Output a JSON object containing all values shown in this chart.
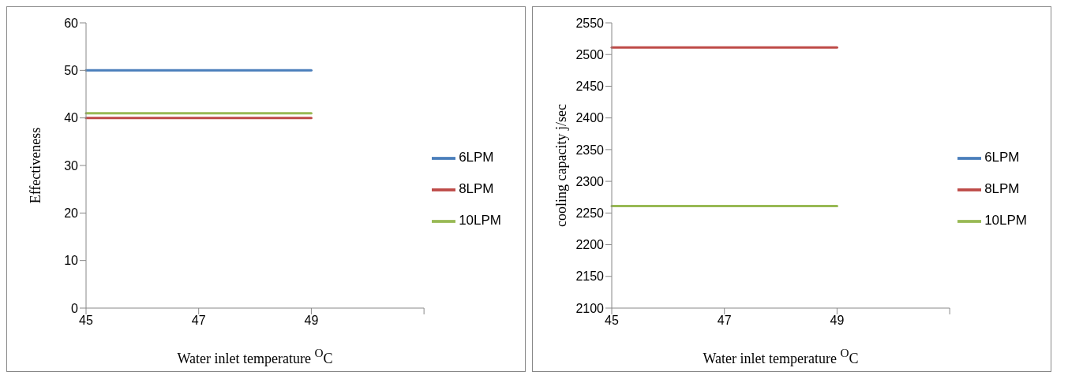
{
  "chart_data": [
    {
      "type": "line",
      "categories": [
        "45",
        "47",
        "49",
        null
      ],
      "xlabel": "Water inlet temperature $^{O}$C",
      "ylabel": "Effectiveness",
      "ylim": [
        0,
        60
      ],
      "yticks": [
        0,
        10,
        20,
        30,
        40,
        50,
        60
      ],
      "legend": "right",
      "grid": false,
      "series": [
        {
          "name": "6LPM",
          "color": "#4a7ebb",
          "values": [
            50,
            50,
            50,
            null
          ]
        },
        {
          "name": "8LPM",
          "color": "#be4b48",
          "values": [
            40,
            40,
            40,
            null
          ]
        },
        {
          "name": "10LPM",
          "color": "#98b954",
          "values": [
            41,
            41,
            41,
            null
          ]
        }
      ]
    },
    {
      "type": "line",
      "categories": [
        "45",
        "47",
        "49",
        null
      ],
      "xlabel": "Water inlet temperature $^{O}$C",
      "ylabel": "cooling capacity j/sec",
      "ylim": [
        2100,
        2550
      ],
      "yticks": [
        2100,
        2150,
        2200,
        2250,
        2300,
        2350,
        2400,
        2450,
        2500,
        2550
      ],
      "legend": "right",
      "grid": false,
      "series": [
        {
          "name": "6LPM",
          "color": "#4a7ebb",
          "values": [
            null,
            null,
            null,
            null
          ]
        },
        {
          "name": "8LPM",
          "color": "#be4b48",
          "values": [
            2511,
            2511,
            2511,
            null
          ]
        },
        {
          "name": "10LPM",
          "color": "#98b954",
          "values": [
            2261,
            2261,
            2261,
            null
          ]
        }
      ]
    }
  ]
}
